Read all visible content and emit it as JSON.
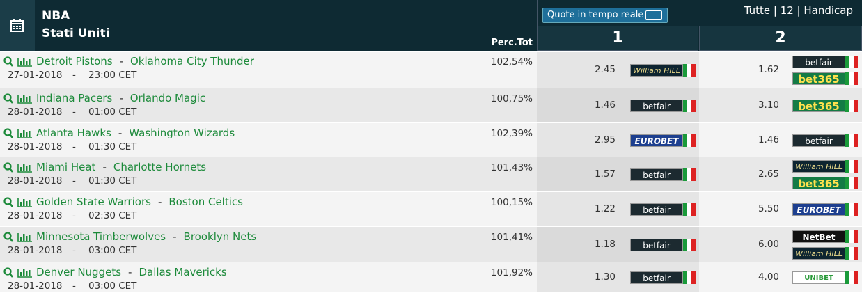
{
  "header": {
    "title": "NBA",
    "subtitle": "Stati Uniti",
    "perc_label": "Perc.Tot",
    "live_button": "Quote in tempo reale",
    "tabs": "Tutte | 12 | Handicap",
    "col1": "1",
    "col2": "2"
  },
  "rows": [
    {
      "home": "Detroit Pistons",
      "sep": "-",
      "away": "Oklahoma City Thunder",
      "date": "27-01-2018",
      "sep2": "-",
      "time": "23:00 CET",
      "perc": "102,54%",
      "odds1": "2.45",
      "books1": [
        "William HILL"
      ],
      "odds2": "1.62",
      "books2": [
        "betfair",
        "bet365"
      ]
    },
    {
      "home": "Indiana Pacers",
      "sep": "-",
      "away": "Orlando Magic",
      "date": "28-01-2018",
      "sep2": "-",
      "time": "01:00 CET",
      "perc": "100,75%",
      "odds1": "1.46",
      "books1": [
        "betfair"
      ],
      "odds2": "3.10",
      "books2": [
        "bet365"
      ]
    },
    {
      "home": "Atlanta Hawks",
      "sep": "-",
      "away": "Washington Wizards",
      "date": "28-01-2018",
      "sep2": "-",
      "time": "01:30 CET",
      "perc": "102,39%",
      "odds1": "2.95",
      "books1": [
        "EUROBET"
      ],
      "odds2": "1.46",
      "books2": [
        "betfair"
      ]
    },
    {
      "home": "Miami Heat",
      "sep": "-",
      "away": "Charlotte Hornets",
      "date": "28-01-2018",
      "sep2": "-",
      "time": "01:30 CET",
      "perc": "101,43%",
      "odds1": "1.57",
      "books1": [
        "betfair"
      ],
      "odds2": "2.65",
      "books2": [
        "William HILL",
        "bet365"
      ]
    },
    {
      "home": "Golden State Warriors",
      "sep": "-",
      "away": "Boston Celtics",
      "date": "28-01-2018",
      "sep2": "-",
      "time": "02:30 CET",
      "perc": "100,15%",
      "odds1": "1.22",
      "books1": [
        "betfair"
      ],
      "odds2": "5.50",
      "books2": [
        "EUROBET"
      ]
    },
    {
      "home": "Minnesota Timberwolves",
      "sep": "-",
      "away": "Brooklyn Nets",
      "date": "28-01-2018",
      "sep2": "-",
      "time": "03:00 CET",
      "perc": "101,41%",
      "odds1": "1.18",
      "books1": [
        "betfair"
      ],
      "odds2": "6.00",
      "books2": [
        "NetBet",
        "William HILL"
      ]
    },
    {
      "home": "Denver Nuggets",
      "sep": "-",
      "away": "Dallas Mavericks",
      "date": "28-01-2018",
      "sep2": "-",
      "time": "03:00 CET",
      "perc": "101,92%",
      "odds1": "1.30",
      "books1": [
        "betfair"
      ],
      "odds2": "4.00",
      "books2": [
        "UNIBET"
      ]
    }
  ]
}
